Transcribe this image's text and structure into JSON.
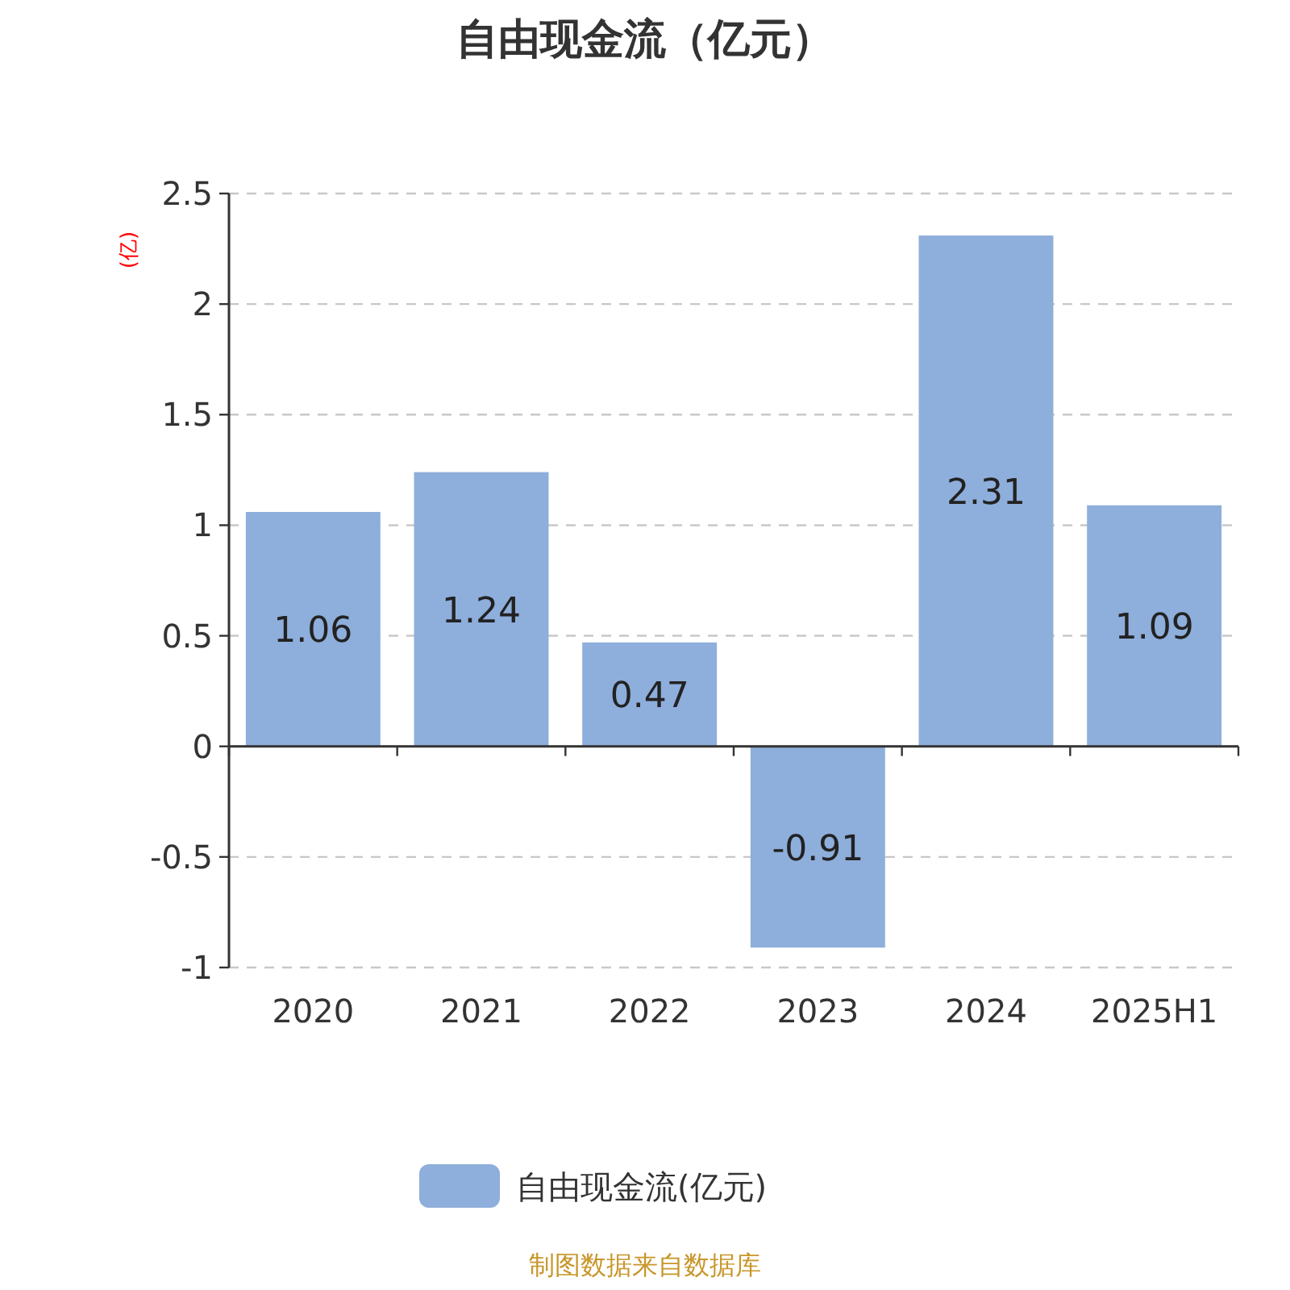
{
  "chart_data": {
    "type": "bar",
    "title": "自由现金流（亿元）",
    "ylabel": "(亿)",
    "categories": [
      "2020",
      "2021",
      "2022",
      "2023",
      "2024",
      "2025H1"
    ],
    "series": [
      {
        "name": "自由现金流(亿元)",
        "color": "#8eaedb",
        "values": [
          1.06,
          1.24,
          0.47,
          -0.91,
          2.31,
          1.09
        ]
      }
    ],
    "ylim": [
      -1,
      2.5
    ],
    "yticks": [
      -1,
      -0.5,
      0,
      0.5,
      1,
      1.5,
      2,
      2.5
    ],
    "grid": "y",
    "legend": "bottom",
    "data_labels": true,
    "annotations": [
      "制图数据来自数据库"
    ]
  }
}
